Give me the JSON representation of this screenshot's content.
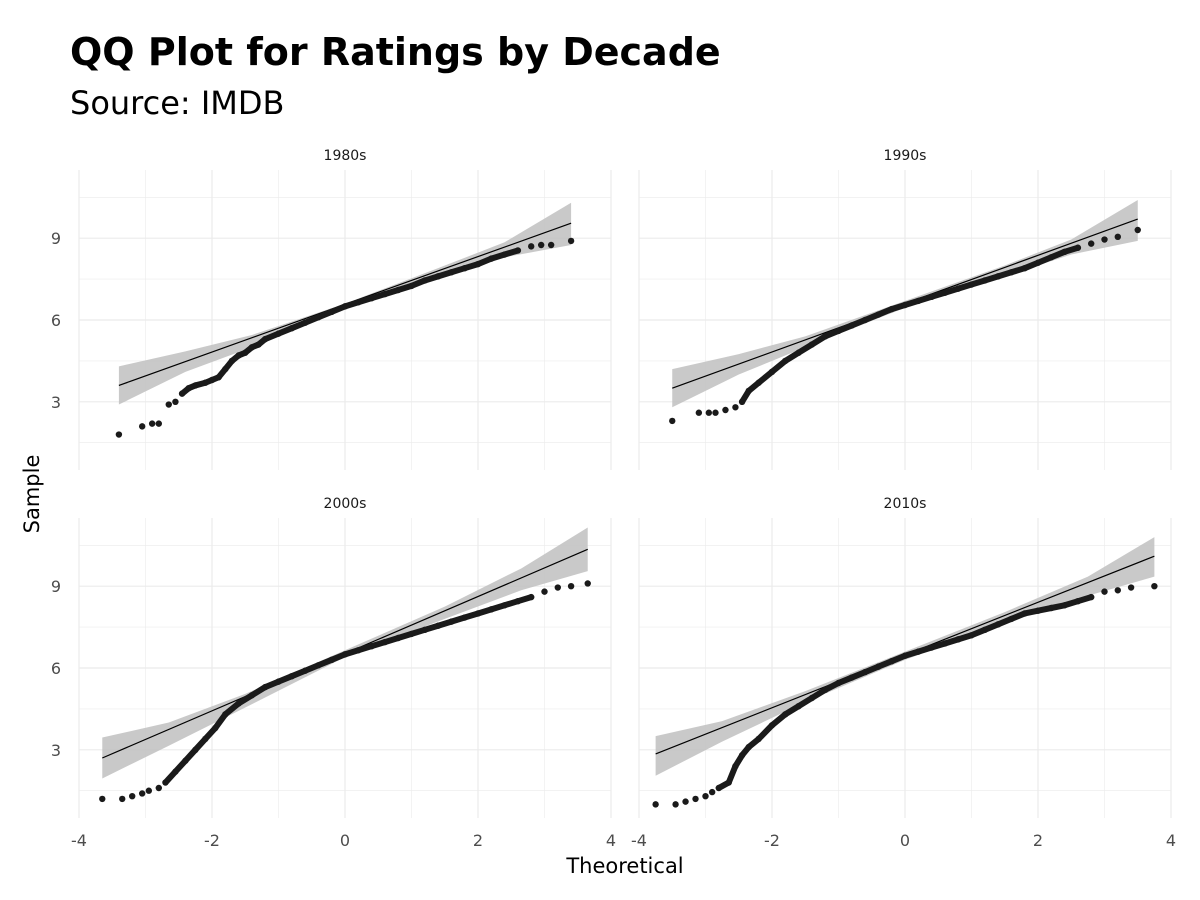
{
  "chart_data": {
    "type": "scatter",
    "title": "QQ Plot for Ratings by Decade",
    "subtitle": "Source: IMDB",
    "xlabel": "Theoretical",
    "ylabel": "Sample",
    "xlim": [
      -4.0,
      4.0
    ],
    "ylim": [
      0.5,
      11.5
    ],
    "x_ticks": [
      -4,
      -2,
      0,
      2,
      4
    ],
    "y_ticks": [
      3,
      6,
      9
    ],
    "grid": true,
    "colors": {
      "points": "#1a1a1a",
      "line": "#000000",
      "band": "#bfbfbf",
      "grid": "#ebebeb"
    },
    "panels": [
      {
        "label": "1980s",
        "points": [
          [
            -3.4,
            1.8
          ],
          [
            -3.05,
            2.1
          ],
          [
            -2.9,
            2.2
          ],
          [
            -2.8,
            2.2
          ],
          [
            -2.65,
            2.9
          ],
          [
            -2.55,
            3.0
          ],
          [
            -2.45,
            3.3
          ],
          [
            -2.35,
            3.5
          ],
          [
            -2.25,
            3.6
          ],
          [
            -2.1,
            3.7
          ],
          [
            -2.0,
            3.8
          ],
          [
            -1.9,
            3.9
          ],
          [
            -1.8,
            4.2
          ],
          [
            -1.7,
            4.5
          ],
          [
            -1.6,
            4.7
          ],
          [
            -1.5,
            4.8
          ],
          [
            -1.4,
            5.0
          ],
          [
            -1.3,
            5.1
          ],
          [
            -1.2,
            5.3
          ],
          [
            -1.0,
            5.5
          ],
          [
            -0.8,
            5.7
          ],
          [
            -0.6,
            5.9
          ],
          [
            -0.4,
            6.1
          ],
          [
            -0.2,
            6.3
          ],
          [
            0.0,
            6.5
          ],
          [
            0.2,
            6.65
          ],
          [
            0.4,
            6.8
          ],
          [
            0.6,
            6.95
          ],
          [
            0.8,
            7.1
          ],
          [
            1.0,
            7.25
          ],
          [
            1.2,
            7.45
          ],
          [
            1.4,
            7.6
          ],
          [
            1.6,
            7.75
          ],
          [
            1.8,
            7.9
          ],
          [
            2.0,
            8.05
          ],
          [
            2.2,
            8.25
          ],
          [
            2.4,
            8.4
          ],
          [
            2.6,
            8.55
          ],
          [
            2.8,
            8.7
          ],
          [
            2.95,
            8.75
          ],
          [
            3.1,
            8.75
          ],
          [
            3.4,
            8.9
          ]
        ],
        "line": [
          [
            -3.4,
            3.6
          ],
          [
            3.4,
            9.55
          ]
        ],
        "band": [
          [
            -3.4,
            4.3,
            2.9
          ],
          [
            -2.4,
            4.85,
            4.1
          ],
          [
            -1.4,
            5.45,
            5.0
          ],
          [
            0.0,
            6.6,
            6.4
          ],
          [
            1.4,
            7.9,
            7.5
          ],
          [
            2.4,
            8.85,
            8.3
          ],
          [
            3.4,
            10.3,
            8.75
          ]
        ]
      },
      {
        "label": "1990s",
        "points": [
          [
            -3.5,
            2.3
          ],
          [
            -3.1,
            2.6
          ],
          [
            -2.95,
            2.6
          ],
          [
            -2.85,
            2.6
          ],
          [
            -2.7,
            2.7
          ],
          [
            -2.55,
            2.8
          ],
          [
            -2.45,
            3.0
          ],
          [
            -2.35,
            3.4
          ],
          [
            -2.2,
            3.7
          ],
          [
            -2.0,
            4.1
          ],
          [
            -1.8,
            4.5
          ],
          [
            -1.6,
            4.8
          ],
          [
            -1.4,
            5.1
          ],
          [
            -1.2,
            5.4
          ],
          [
            -1.0,
            5.6
          ],
          [
            -0.8,
            5.8
          ],
          [
            -0.6,
            6.0
          ],
          [
            -0.4,
            6.2
          ],
          [
            -0.2,
            6.4
          ],
          [
            0.0,
            6.55
          ],
          [
            0.2,
            6.7
          ],
          [
            0.4,
            6.85
          ],
          [
            0.6,
            7.0
          ],
          [
            0.8,
            7.15
          ],
          [
            1.0,
            7.3
          ],
          [
            1.2,
            7.45
          ],
          [
            1.4,
            7.6
          ],
          [
            1.6,
            7.75
          ],
          [
            1.8,
            7.9
          ],
          [
            2.0,
            8.1
          ],
          [
            2.2,
            8.3
          ],
          [
            2.4,
            8.5
          ],
          [
            2.6,
            8.65
          ],
          [
            2.8,
            8.8
          ],
          [
            3.0,
            8.95
          ],
          [
            3.2,
            9.05
          ],
          [
            3.5,
            9.3
          ]
        ],
        "line": [
          [
            -3.5,
            3.5
          ],
          [
            3.5,
            9.7
          ]
        ],
        "band": [
          [
            -3.5,
            4.2,
            2.8
          ],
          [
            -2.5,
            4.75,
            4.0
          ],
          [
            -1.5,
            5.4,
            5.0
          ],
          [
            0.0,
            6.7,
            6.45
          ],
          [
            1.5,
            8.0,
            7.6
          ],
          [
            2.5,
            8.95,
            8.4
          ],
          [
            3.5,
            10.4,
            8.9
          ]
        ]
      },
      {
        "label": "2000s",
        "points": [
          [
            -3.65,
            1.2
          ],
          [
            -3.35,
            1.2
          ],
          [
            -3.2,
            1.3
          ],
          [
            -3.05,
            1.4
          ],
          [
            -2.95,
            1.5
          ],
          [
            -2.8,
            1.6
          ],
          [
            -2.7,
            1.8
          ],
          [
            -2.55,
            2.2
          ],
          [
            -2.4,
            2.6
          ],
          [
            -2.25,
            3.0
          ],
          [
            -2.1,
            3.4
          ],
          [
            -1.95,
            3.8
          ],
          [
            -1.8,
            4.3
          ],
          [
            -1.6,
            4.7
          ],
          [
            -1.4,
            5.0
          ],
          [
            -1.2,
            5.3
          ],
          [
            -1.0,
            5.5
          ],
          [
            -0.8,
            5.7
          ],
          [
            -0.6,
            5.9
          ],
          [
            -0.4,
            6.1
          ],
          [
            -0.2,
            6.3
          ],
          [
            0.0,
            6.5
          ],
          [
            0.2,
            6.65
          ],
          [
            0.4,
            6.8
          ],
          [
            0.6,
            6.95
          ],
          [
            0.8,
            7.1
          ],
          [
            1.0,
            7.25
          ],
          [
            1.2,
            7.4
          ],
          [
            1.4,
            7.55
          ],
          [
            1.6,
            7.7
          ],
          [
            1.8,
            7.85
          ],
          [
            2.0,
            8.0
          ],
          [
            2.2,
            8.15
          ],
          [
            2.4,
            8.3
          ],
          [
            2.6,
            8.45
          ],
          [
            2.8,
            8.6
          ],
          [
            3.0,
            8.8
          ],
          [
            3.2,
            8.95
          ],
          [
            3.4,
            9.0
          ],
          [
            3.65,
            9.1
          ]
        ],
        "line": [
          [
            -3.65,
            2.7
          ],
          [
            3.65,
            10.35
          ]
        ],
        "band": [
          [
            -3.65,
            3.45,
            1.95
          ],
          [
            -2.65,
            4.0,
            3.15
          ],
          [
            -1.5,
            5.05,
            4.55
          ],
          [
            0.0,
            6.65,
            6.4
          ],
          [
            1.5,
            8.25,
            7.8
          ],
          [
            2.65,
            9.65,
            8.85
          ],
          [
            3.65,
            11.15,
            9.55
          ]
        ]
      },
      {
        "label": "2010s",
        "points": [
          [
            -3.75,
            1.0
          ],
          [
            -3.45,
            1.0
          ],
          [
            -3.3,
            1.1
          ],
          [
            -3.15,
            1.2
          ],
          [
            -3.0,
            1.3
          ],
          [
            -2.9,
            1.45
          ],
          [
            -2.8,
            1.6
          ],
          [
            -2.65,
            1.8
          ],
          [
            -2.55,
            2.4
          ],
          [
            -2.45,
            2.8
          ],
          [
            -2.35,
            3.1
          ],
          [
            -2.2,
            3.4
          ],
          [
            -2.0,
            3.9
          ],
          [
            -1.8,
            4.3
          ],
          [
            -1.6,
            4.6
          ],
          [
            -1.4,
            4.9
          ],
          [
            -1.2,
            5.2
          ],
          [
            -1.0,
            5.45
          ],
          [
            -0.8,
            5.65
          ],
          [
            -0.6,
            5.85
          ],
          [
            -0.4,
            6.05
          ],
          [
            -0.2,
            6.25
          ],
          [
            0.0,
            6.45
          ],
          [
            0.2,
            6.6
          ],
          [
            0.4,
            6.75
          ],
          [
            0.6,
            6.9
          ],
          [
            0.8,
            7.05
          ],
          [
            1.0,
            7.2
          ],
          [
            1.2,
            7.4
          ],
          [
            1.4,
            7.6
          ],
          [
            1.6,
            7.8
          ],
          [
            1.8,
            8.0
          ],
          [
            2.0,
            8.1
          ],
          [
            2.2,
            8.2
          ],
          [
            2.4,
            8.3
          ],
          [
            2.6,
            8.45
          ],
          [
            2.8,
            8.6
          ],
          [
            3.0,
            8.8
          ],
          [
            3.2,
            8.85
          ],
          [
            3.4,
            8.95
          ],
          [
            3.75,
            9.0
          ]
        ],
        "line": [
          [
            -3.75,
            2.85
          ],
          [
            3.75,
            10.1
          ]
        ],
        "band": [
          [
            -3.75,
            3.5,
            2.05
          ],
          [
            -2.75,
            4.05,
            3.3
          ],
          [
            -1.5,
            5.15,
            4.75
          ],
          [
            0.0,
            6.6,
            6.3
          ],
          [
            1.5,
            8.05,
            7.65
          ],
          [
            2.75,
            9.35,
            8.65
          ],
          [
            3.75,
            10.8,
            9.35
          ]
        ]
      }
    ]
  }
}
